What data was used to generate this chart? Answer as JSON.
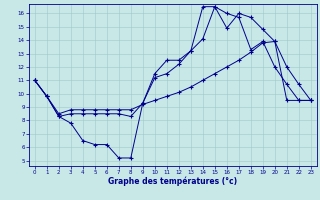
{
  "xlabel": "Graphe des températures (°c)",
  "bg_color": "#c8e8e8",
  "line_color": "#00008b",
  "xmin": -0.5,
  "xmax": 23.5,
  "ymin": 4.6,
  "ymax": 16.7,
  "yticks": [
    5,
    6,
    7,
    8,
    9,
    10,
    11,
    12,
    13,
    14,
    15,
    16
  ],
  "xticks": [
    0,
    1,
    2,
    3,
    4,
    5,
    6,
    7,
    8,
    9,
    10,
    11,
    12,
    13,
    14,
    15,
    16,
    17,
    18,
    19,
    20,
    21,
    22,
    23
  ],
  "s1_x": [
    0,
    1,
    2,
    3,
    4,
    5,
    6,
    7,
    8,
    9,
    10,
    11,
    12,
    13,
    14,
    15,
    16,
    17,
    18,
    19,
    20,
    21,
    22,
    23
  ],
  "s1_y": [
    11.0,
    9.8,
    8.3,
    7.8,
    6.5,
    6.2,
    6.2,
    5.2,
    5.2,
    9.3,
    11.2,
    11.5,
    12.2,
    13.2,
    14.1,
    16.5,
    14.9,
    16.0,
    15.7,
    14.8,
    13.9,
    12.0,
    10.7,
    9.5
  ],
  "s2_x": [
    0,
    1,
    2,
    3,
    4,
    5,
    6,
    7,
    8,
    9,
    10,
    11,
    12,
    13,
    14,
    15,
    16,
    17,
    18,
    19,
    20,
    21,
    22,
    23
  ],
  "s2_y": [
    11.0,
    9.8,
    8.5,
    8.8,
    8.8,
    8.8,
    8.8,
    8.8,
    8.8,
    9.2,
    9.5,
    9.8,
    10.1,
    10.5,
    11.0,
    11.5,
    12.0,
    12.5,
    13.1,
    13.8,
    13.9,
    9.5,
    9.5,
    9.5
  ],
  "s3_x": [
    0,
    1,
    2,
    3,
    4,
    5,
    6,
    7,
    8,
    9,
    10,
    11,
    12,
    13,
    14,
    15,
    16,
    17,
    18,
    19,
    20,
    21,
    22,
    23
  ],
  "s3_y": [
    11.0,
    9.8,
    8.3,
    8.5,
    8.5,
    8.5,
    8.5,
    8.5,
    8.3,
    9.3,
    11.5,
    12.5,
    12.5,
    13.2,
    16.5,
    16.5,
    16.0,
    15.7,
    13.3,
    13.9,
    12.0,
    10.7,
    9.5,
    9.5
  ]
}
